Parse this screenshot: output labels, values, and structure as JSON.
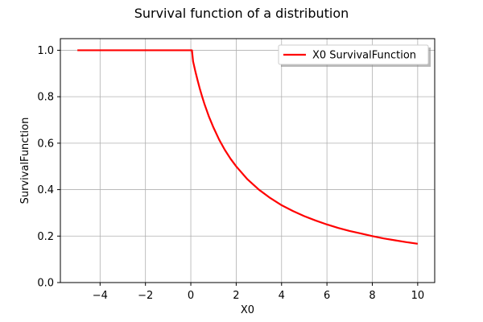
{
  "chart_data": {
    "type": "line",
    "title": "Survival function of a distribution",
    "xlabel": "X0",
    "ylabel": "SurvivalFunction",
    "xlim": [
      -5.75,
      10.75
    ],
    "ylim": [
      0.0,
      1.05
    ],
    "xticks": [
      -4,
      -2,
      0,
      2,
      4,
      6,
      8,
      10
    ],
    "yticks": [
      0.0,
      0.2,
      0.4,
      0.6,
      0.8,
      1.0
    ],
    "xtick_labels": [
      "−4",
      "−2",
      "0",
      "2",
      "4",
      "6",
      "8",
      "10"
    ],
    "ytick_labels": [
      "0.0",
      "0.2",
      "0.4",
      "0.6",
      "0.8",
      "1.0"
    ],
    "grid": true,
    "legend": {
      "placement": "upper right"
    },
    "series": [
      {
        "name": "X0 SurvivalFunction",
        "color": "#ff0000",
        "x": [
          -5.0,
          -2.0,
          0.0,
          0.05,
          0.1,
          0.2,
          0.3,
          0.4,
          0.5,
          0.6,
          0.8,
          1.0,
          1.25,
          1.5,
          1.75,
          2.0,
          2.5,
          3.0,
          3.5,
          4.0,
          4.5,
          5.0,
          5.5,
          6.0,
          6.5,
          7.0,
          7.5,
          8.0,
          8.5,
          9.0,
          9.5,
          10.0
        ],
        "y": [
          1.0,
          1.0,
          1.0,
          1.0,
          0.952,
          0.909,
          0.87,
          0.833,
          0.8,
          0.769,
          0.714,
          0.667,
          0.615,
          0.571,
          0.533,
          0.5,
          0.444,
          0.4,
          0.364,
          0.333,
          0.308,
          0.286,
          0.267,
          0.25,
          0.235,
          0.222,
          0.211,
          0.2,
          0.19,
          0.182,
          0.174,
          0.167
        ]
      }
    ]
  }
}
